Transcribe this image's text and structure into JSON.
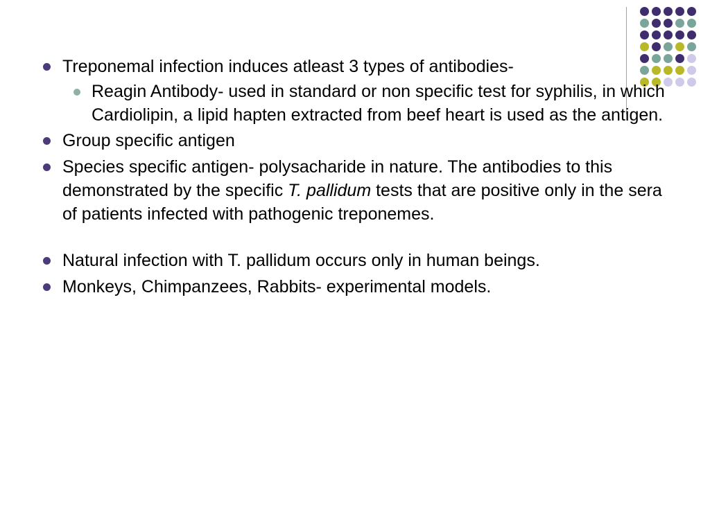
{
  "decoration": {
    "divider_color": "#b0a090",
    "colors": {
      "purple": "#3f2d6d",
      "teal": "#7aa59a",
      "olive": "#b8b828",
      "lav": "#d0caea"
    },
    "rows": [
      [
        "purple",
        "purple",
        "purple",
        "purple",
        "purple"
      ],
      [
        "teal",
        "purple",
        "purple",
        "teal",
        "teal"
      ],
      [
        "purple",
        "purple",
        "purple",
        "purple",
        "purple"
      ],
      [
        "olive",
        "purple",
        "teal",
        "olive",
        "teal"
      ],
      [
        "purple",
        "teal",
        "teal",
        "purple",
        "lav"
      ],
      [
        "teal",
        "olive",
        "olive",
        "olive",
        "lav"
      ],
      [
        "olive",
        "olive",
        "lav",
        "lav",
        "lav"
      ]
    ],
    "dot_size": 13,
    "gap": 4
  },
  "bullets": {
    "item1": "Treponemal infection induces atleast 3 types of antibodies-",
    "item1_sub1": "Reagin Antibody- used in standard or non specific test for syphilis, in which Cardiolipin, a lipid hapten extracted from beef heart is used as the antigen.",
    "item2": "Group specific antigen",
    "item3_pre": "Species specific antigen- polysacharide in nature. The antibodies to this demonstrated by the specific ",
    "item3_italic": "T. pallidum",
    "item3_post": " tests that are positive only in the sera of patients infected with pathogenic treponemes.",
    "item4": "Natural infection with T. pallidum occurs only in human beings.",
    "item5": "Monkeys, Chimpanzees, Rabbits- experimental models."
  },
  "style": {
    "outer_bullet_color": "#4b3b7a",
    "inner_bullet_color": "#8fb0a8",
    "font_size": 25,
    "background": "#ffffff"
  }
}
